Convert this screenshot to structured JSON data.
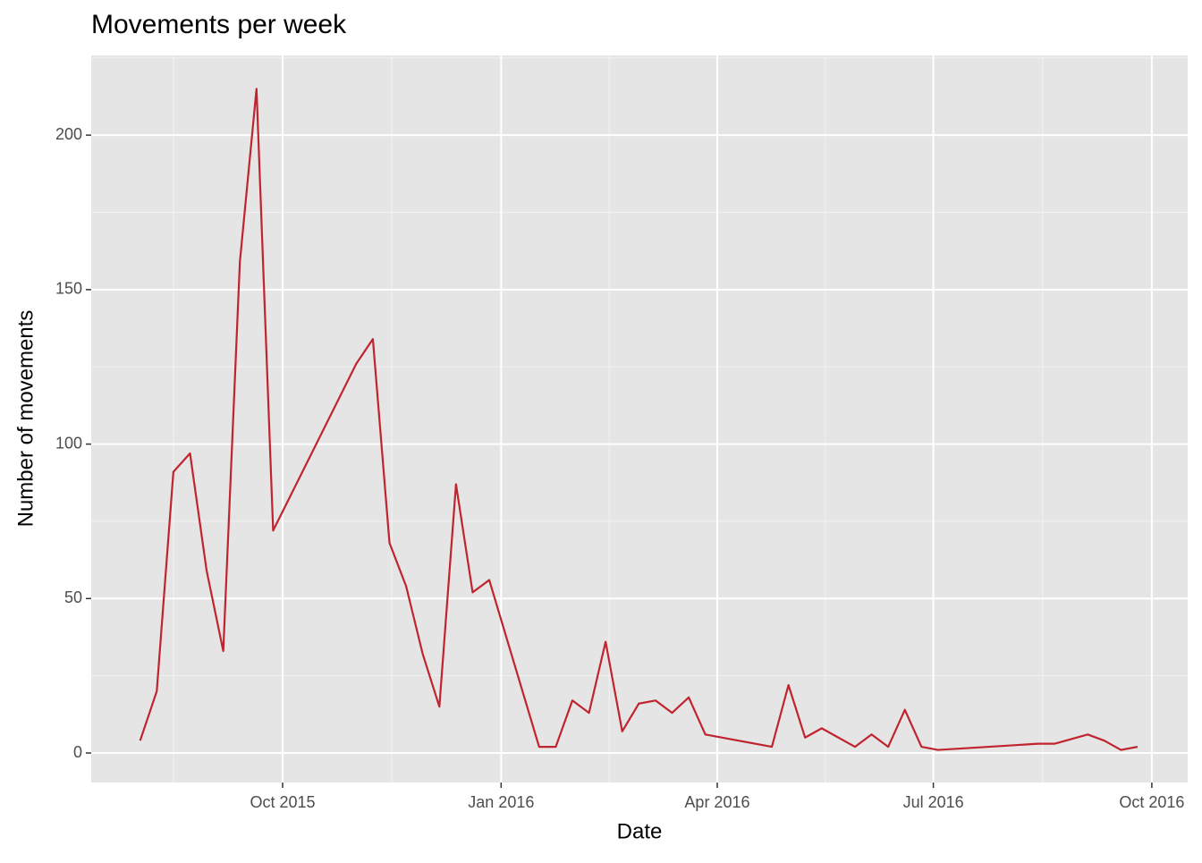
{
  "chart_data": {
    "type": "line",
    "title": "Movements per week",
    "x_label": "Date",
    "y_label": "Number of movements",
    "x": [
      -60,
      -53,
      -46,
      -39,
      -32,
      -25,
      -18,
      -11,
      -4,
      31,
      38,
      45,
      52,
      59,
      66,
      73,
      80,
      87,
      108,
      115,
      122,
      129,
      136,
      143,
      150,
      157,
      164,
      171,
      178,
      206,
      213,
      220,
      227,
      241,
      248,
      255,
      262,
      269,
      276,
      318,
      325,
      339,
      346,
      353,
      360
    ],
    "series": [
      {
        "name": "Movements",
        "color": "#c0242e",
        "values": [
          4,
          20,
          91,
          97,
          59,
          33,
          159,
          215,
          72,
          126,
          134,
          68,
          54,
          32,
          15,
          87,
          52,
          56,
          2,
          2,
          17,
          13,
          36,
          7,
          16,
          17,
          13,
          18,
          6,
          2,
          22,
          5,
          8,
          2,
          6,
          2,
          14,
          2,
          1,
          3,
          3,
          6,
          4,
          1,
          2
        ]
      }
    ],
    "xlim": [
      -80.6,
      381.1
    ],
    "xticks": [
      {
        "value": 0,
        "label": "Oct 2015"
      },
      {
        "value": 92,
        "label": "Jan 2016"
      },
      {
        "value": 183,
        "label": "Apr 2016"
      },
      {
        "value": 274,
        "label": "Jul 2016"
      },
      {
        "value": 366,
        "label": "Oct 2016"
      }
    ],
    "xminorticks": [
      -46,
      46,
      137.5,
      228.5,
      320
    ],
    "ylim": [
      -9.55,
      225.8
    ],
    "yticks": [
      0,
      50,
      100,
      150,
      200
    ],
    "yminorticks": [
      25,
      75,
      125,
      175,
      225
    ],
    "grid": true
  }
}
